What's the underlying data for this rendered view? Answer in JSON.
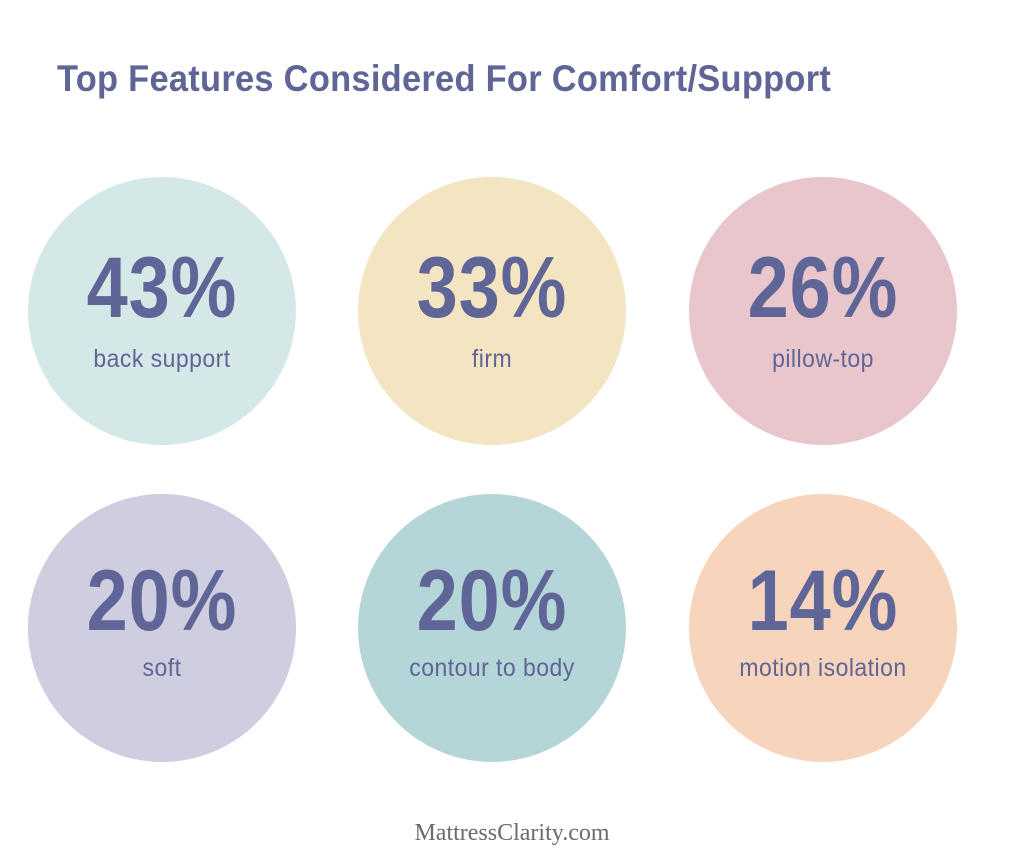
{
  "chart_data": {
    "type": "infographic",
    "title": "Top Features Considered For Comfort/Support",
    "categories": [
      "back support",
      "firm",
      "pillow-top",
      "soft",
      "contour to body",
      "motion isolation"
    ],
    "values": [
      43,
      33,
      26,
      20,
      20,
      14
    ],
    "unit": "%",
    "colors": [
      "#d4e8e8",
      "#f3e4c2",
      "#e8c6cc",
      "#cfcde0",
      "#b5d6d8",
      "#f6d5bc"
    ],
    "text_color": "#5f6597"
  },
  "footer": {
    "source": "MattressClarity.com"
  }
}
